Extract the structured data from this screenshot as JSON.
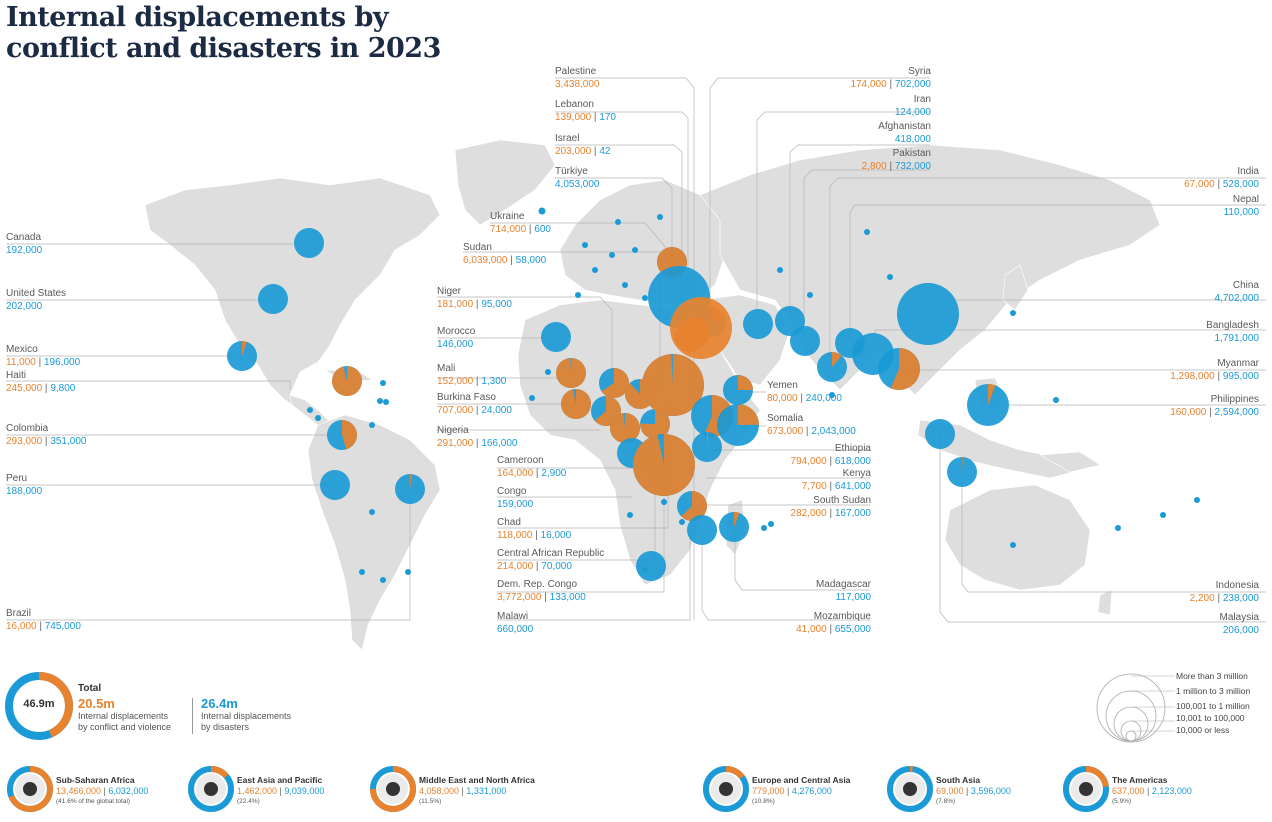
{
  "title": {
    "line1": "Internal displacements by",
    "line2": "conflict and disasters in 2023"
  },
  "colors": {
    "conflict": "#e8822e",
    "disaster": "#1a9ad6",
    "land": "#dedede",
    "bg": "#ffffff"
  },
  "labels": {
    "canada": {
      "name": "Canada",
      "vals": "192,000"
    },
    "usa": {
      "name": "United States",
      "vals": "202,000"
    },
    "mexico": {
      "name": "Mexico",
      "conf": "11,000",
      "dis": "196,000"
    },
    "haiti": {
      "name": "Haiti",
      "conf": "245,000",
      "dis": "9,800"
    },
    "colombia": {
      "name": "Colombia",
      "conf": "293,000",
      "dis": "351,000"
    },
    "peru": {
      "name": "Peru",
      "vals": "188,000"
    },
    "brazil": {
      "name": "Brazil",
      "conf": "16,000",
      "dis": "745,000"
    },
    "palestine": {
      "name": "Palestine",
      "conf": "3,438,000"
    },
    "lebanon": {
      "name": "Lebanon",
      "conf": "139,000",
      "dis": "170"
    },
    "israel": {
      "name": "Israel",
      "conf": "203,000",
      "dis": "42"
    },
    "turkiye": {
      "name": "Türkiye",
      "vals": "4,053,000"
    },
    "ukraine": {
      "name": "Ukraine",
      "conf": "714,000",
      "dis": "600"
    },
    "sudan": {
      "name": "Sudan",
      "conf": "6,039,000",
      "dis": "58,000"
    },
    "niger": {
      "name": "Niger",
      "conf": "181,000",
      "dis": "95,000"
    },
    "morocco": {
      "name": "Morocco",
      "vals": "146,000"
    },
    "mali": {
      "name": "Mali",
      "conf": "152,000",
      "dis": "1,300"
    },
    "burkina": {
      "name": "Burkina Faso",
      "conf": "707,000",
      "dis": "24,000"
    },
    "nigeria": {
      "name": "Nigeria",
      "conf": "291,000",
      "dis": "166,000"
    },
    "cameroon": {
      "name": "Cameroon",
      "conf": "164,000",
      "dis": "2,900"
    },
    "congo": {
      "name": "Congo",
      "vals": "159,000"
    },
    "chad": {
      "name": "Chad",
      "conf": "118,000",
      "dis": "16,000"
    },
    "car": {
      "name": "Central African Republic",
      "conf": "214,000",
      "dis": "70,000"
    },
    "drc": {
      "name": "Dem. Rep. Congo",
      "conf": "3,772,000",
      "dis": "133,000"
    },
    "malawi": {
      "name": "Malawi",
      "vals": "660,000"
    },
    "syria": {
      "name": "Syria",
      "conf": "174,000",
      "dis": "702,000"
    },
    "iran": {
      "name": "Iran",
      "vals": "124,000"
    },
    "afghanistan": {
      "name": "Afghanistan",
      "vals": "418,000"
    },
    "pakistan": {
      "name": "Pakistan",
      "conf": "2,800",
      "dis": "732,000"
    },
    "india": {
      "name": "India",
      "conf": "67,000",
      "dis": "528,000"
    },
    "nepal": {
      "name": "Nepal",
      "vals": "110,000"
    },
    "china": {
      "name": "China",
      "vals": "4,702,000"
    },
    "bangladesh": {
      "name": "Bangladesh",
      "vals": "1,791,000"
    },
    "myanmar": {
      "name": "Myanmar",
      "conf": "1,298,000",
      "dis": "995,000"
    },
    "philippines": {
      "name": "Philippines",
      "conf": "160,000",
      "dis": "2,594,000"
    },
    "yemen": {
      "name": "Yemen",
      "conf": "80,000",
      "dis": "240,000"
    },
    "somalia": {
      "name": "Somalia",
      "conf": "673,000",
      "dis": "2,043,000"
    },
    "ethiopia": {
      "name": "Ethiopia",
      "conf": "794,000",
      "dis": "618,000"
    },
    "kenya": {
      "name": "Kenya",
      "conf": "7,700",
      "dis": "641,000"
    },
    "southsudan": {
      "name": "South Sudan",
      "conf": "282,000",
      "dis": "167,000"
    },
    "madagascar": {
      "name": "Madagascar",
      "vals": "117,000"
    },
    "mozambique": {
      "name": "Mozambique",
      "conf": "41,000",
      "dis": "655,000"
    },
    "indonesia": {
      "name": "Indonesia",
      "conf": "2,200",
      "dis": "238,000"
    },
    "malaysia": {
      "name": "Malaysia",
      "vals": "206,000"
    }
  },
  "totals": {
    "center": "46.9m",
    "total_label": "Total",
    "conflict_value": "20.5m",
    "conflict_text1": "Internal displacements",
    "conflict_text2": "by conflict and violence",
    "disaster_value": "26.4m",
    "disaster_text1": "Internal displacements",
    "disaster_text2": "by disasters",
    "conflict_share": 0.437
  },
  "size_legend": {
    "items": [
      "More than 3 million",
      "1 million to 3 million",
      "100,001 to 1 million",
      "10,001 to 100,000",
      "10,000 or less"
    ]
  },
  "regions": [
    {
      "name": "Sub-Saharan Africa",
      "conf": "13,466,000",
      "dis": "6,032,000",
      "pct": "(41.6% of the global total)",
      "conflict_share": 0.69
    },
    {
      "name": "East Asia and Pacific",
      "conf": "1,462,000",
      "dis": "9,039,000",
      "pct": "(22.4%)",
      "conflict_share": 0.14
    },
    {
      "name": "Middle East and North Africa",
      "conf": "4,058,000",
      "dis": "1,331,000",
      "pct": "(11.5%)",
      "conflict_share": 0.75
    },
    {
      "name": "Europe and Central Asia",
      "conf": "779,000",
      "dis": "4,276,000",
      "pct": "(10.8%)",
      "conflict_share": 0.15
    },
    {
      "name": "South Asia",
      "conf": "69,000",
      "dis": "3,596,000",
      "pct": "(7.8%)",
      "conflict_share": 0.02
    },
    {
      "name": "The Americas",
      "conf": "637,000",
      "dis": "2,123,000",
      "pct": "(5.9%)",
      "conflict_share": 0.23
    }
  ],
  "bubbles": [
    {
      "name": "Canada",
      "conf": 0,
      "dis": 192000
    },
    {
      "name": "United States",
      "conf": 0,
      "dis": 202000
    },
    {
      "name": "Mexico",
      "conf": 11000,
      "dis": 196000
    },
    {
      "name": "Haiti",
      "conf": 245000,
      "dis": 9800
    },
    {
      "name": "Colombia",
      "conf": 293000,
      "dis": 351000
    },
    {
      "name": "Peru",
      "conf": 0,
      "dis": 188000
    },
    {
      "name": "Brazil",
      "conf": 16000,
      "dis": 745000
    },
    {
      "name": "Morocco",
      "conf": 0,
      "dis": 146000
    },
    {
      "name": "Mali",
      "conf": 152000,
      "dis": 1300
    },
    {
      "name": "Niger",
      "conf": 181000,
      "dis": 95000
    },
    {
      "name": "Burkina Faso",
      "conf": 707000,
      "dis": 24000
    },
    {
      "name": "Nigeria",
      "conf": 291000,
      "dis": 166000
    },
    {
      "name": "Chad",
      "conf": 118000,
      "dis": 16000
    },
    {
      "name": "Cameroon",
      "conf": 164000,
      "dis": 2900
    },
    {
      "name": "Central African Republic",
      "conf": 214000,
      "dis": 70000
    },
    {
      "name": "Sudan",
      "conf": 6039000,
      "dis": 58000
    },
    {
      "name": "South Sudan",
      "conf": 282000,
      "dis": 167000
    },
    {
      "name": "Ethiopia",
      "conf": 794000,
      "dis": 618000
    },
    {
      "name": "Somalia",
      "conf": 673000,
      "dis": 2043000
    },
    {
      "name": "Kenya",
      "conf": 7700,
      "dis": 641000
    },
    {
      "name": "Congo",
      "conf": 0,
      "dis": 159000
    },
    {
      "name": "Dem. Rep. Congo",
      "conf": 3772000,
      "dis": 133000
    },
    {
      "name": "Malawi",
      "conf": 0,
      "dis": 660000
    },
    {
      "name": "Mozambique",
      "conf": 41000,
      "dis": 655000
    },
    {
      "name": "Madagascar",
      "conf": 0,
      "dis": 117000
    },
    {
      "name": "Ukraine",
      "conf": 714000,
      "dis": 600
    },
    {
      "name": "Türkiye",
      "conf": 0,
      "dis": 4053000
    },
    {
      "name": "Syria",
      "conf": 174000,
      "dis": 702000
    },
    {
      "name": "Lebanon",
      "conf": 139000,
      "dis": 170
    },
    {
      "name": "Israel",
      "conf": 203000,
      "dis": 42
    },
    {
      "name": "Palestine",
      "conf": 3438000,
      "dis": 0
    },
    {
      "name": "Yemen",
      "conf": 80000,
      "dis": 240000
    },
    {
      "name": "Iran",
      "conf": 0,
      "dis": 124000
    },
    {
      "name": "Afghanistan",
      "conf": 0,
      "dis": 418000
    },
    {
      "name": "Pakistan",
      "conf": 2800,
      "dis": 732000
    },
    {
      "name": "India",
      "conf": 67000,
      "dis": 528000
    },
    {
      "name": "Nepal",
      "conf": 0,
      "dis": 110000
    },
    {
      "name": "Bangladesh",
      "conf": 0,
      "dis": 1791000
    },
    {
      "name": "Myanmar",
      "conf": 1298000,
      "dis": 995000
    },
    {
      "name": "China",
      "conf": 0,
      "dis": 4702000
    },
    {
      "name": "Philippines",
      "conf": 160000,
      "dis": 2594000
    },
    {
      "name": "Malaysia",
      "conf": 0,
      "dis": 206000
    },
    {
      "name": "Indonesia",
      "conf": 2200,
      "dis": 238000
    }
  ]
}
